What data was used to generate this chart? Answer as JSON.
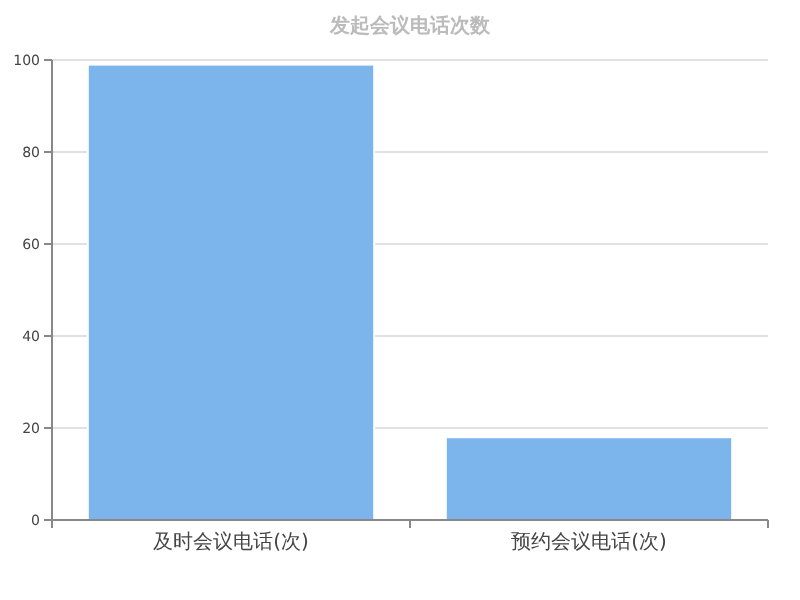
{
  "chart_data": {
    "type": "bar",
    "title": "发起会议电话次数",
    "categories": [
      "及时会议电话(次)",
      "预约会议电话(次)"
    ],
    "values": [
      99,
      18
    ],
    "color": "#7cb5ec",
    "ylim": [
      0,
      100
    ],
    "yticks": [
      0,
      20,
      40,
      60,
      80,
      100
    ],
    "grid": "y"
  }
}
